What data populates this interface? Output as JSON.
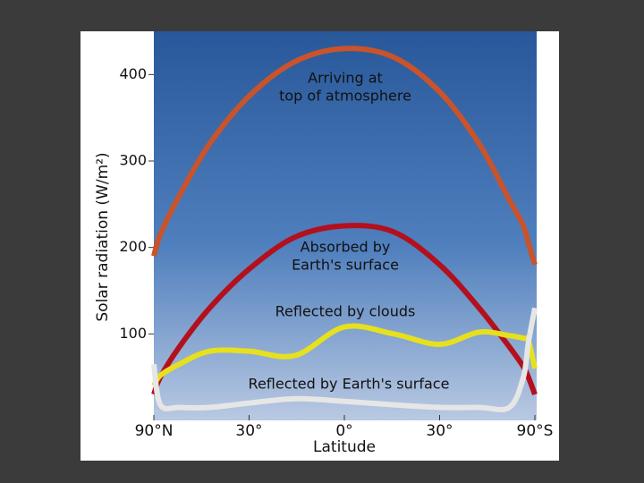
{
  "chart_data": {
    "type": "line",
    "x_label": "Latitude",
    "y_label": "Solar radiation (W/m²)",
    "x_scale": "sine",
    "x": [
      90,
      75,
      60,
      45,
      30,
      15,
      0,
      -15,
      -30,
      -45,
      -60,
      -70,
      -75,
      -90
    ],
    "xlim": [
      90,
      -90
    ],
    "xticks": [
      {
        "value": 90,
        "label": "90°N"
      },
      {
        "value": 30,
        "label": "30°"
      },
      {
        "value": 0,
        "label": "0°"
      },
      {
        "value": -30,
        "label": "30°"
      },
      {
        "value": -90,
        "label": "90°S"
      }
    ],
    "ylim": [
      0,
      450
    ],
    "yticks": [
      100,
      200,
      300,
      400
    ],
    "series": [
      {
        "name": "Arriving at top of atmosphere",
        "lines": [
          "Arriving at",
          "top of atmosphere"
        ],
        "color": "#c9532b",
        "values": [
          190,
          215,
          260,
          320,
          375,
          415,
          430,
          420,
          380,
          320,
          255,
          225,
          205,
          180
        ]
      },
      {
        "name": "Absorbed by Earth's surface",
        "lines": [
          "Absorbed by",
          "Earth's surface"
        ],
        "color": "#b3101e",
        "values": [
          30,
          50,
          85,
          130,
          175,
          212,
          225,
          218,
          180,
          130,
          85,
          62,
          50,
          30
        ]
      },
      {
        "name": "Reflected by clouds",
        "lines": [
          "Reflected by clouds"
        ],
        "color": "#e6e01e",
        "values": [
          40,
          52,
          65,
          80,
          80,
          75,
          108,
          100,
          88,
          102,
          98,
          95,
          92,
          60
        ]
      },
      {
        "name": "Reflected by Earth's surface",
        "lines": [
          "Reflected by Earth's surface"
        ],
        "color": "#e6e6e6",
        "values": [
          65,
          18,
          15,
          15,
          20,
          25,
          22,
          18,
          15,
          15,
          15,
          50,
          90,
          130
        ]
      }
    ]
  }
}
